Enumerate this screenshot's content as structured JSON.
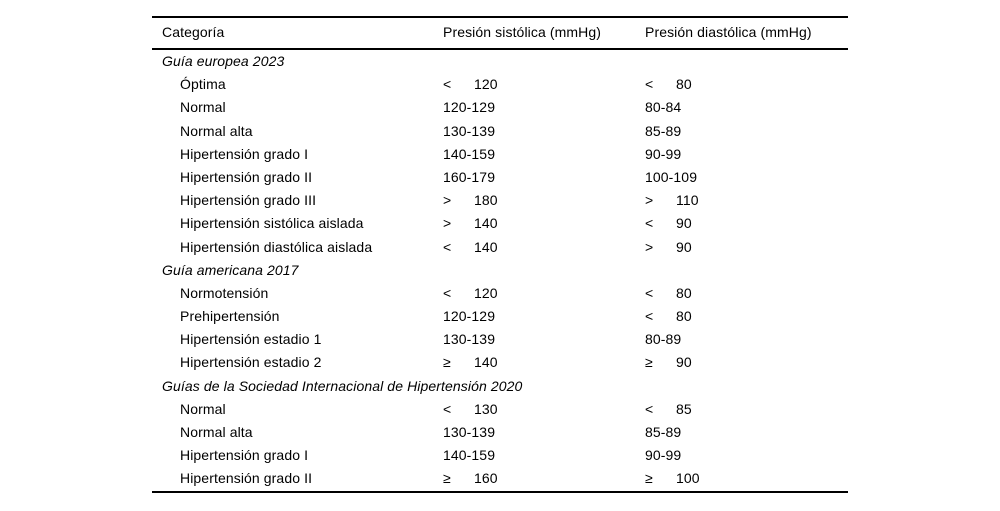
{
  "table": {
    "headers": {
      "category": "Categoría",
      "systolic": "Presión sistólica (mmHg)",
      "diastolic": "Presión diastólica (mmHg)"
    },
    "rows": [
      {
        "type": "section",
        "title": "Guía europea 2023"
      },
      {
        "type": "data",
        "category": "Óptima",
        "sys_op": "<",
        "sys_val": "120",
        "dia_op": "<",
        "dia_val": "80"
      },
      {
        "type": "data",
        "category": "Normal",
        "sys_op": "",
        "sys_val": "120-129",
        "dia_op": "",
        "dia_val": "80-84"
      },
      {
        "type": "data",
        "category": "Normal alta",
        "sys_op": "",
        "sys_val": "130-139",
        "dia_op": "",
        "dia_val": "85-89"
      },
      {
        "type": "data",
        "category": "Hipertensión grado I",
        "sys_op": "",
        "sys_val": "140-159",
        "dia_op": "",
        "dia_val": "90-99"
      },
      {
        "type": "data",
        "category": "Hipertensión grado II",
        "sys_op": "",
        "sys_val": "160-179",
        "dia_op": "",
        "dia_val": "100-109"
      },
      {
        "type": "data",
        "category": "Hipertensión grado III",
        "sys_op": ">",
        "sys_val": "180",
        "dia_op": ">",
        "dia_val": "110"
      },
      {
        "type": "data",
        "category": "Hipertensión sistólica aislada",
        "sys_op": ">",
        "sys_val": "140",
        "dia_op": "<",
        "dia_val": "90"
      },
      {
        "type": "data",
        "category": "Hipertensión diastólica aislada",
        "sys_op": "<",
        "sys_val": "140",
        "dia_op": ">",
        "dia_val": "90"
      },
      {
        "type": "section",
        "title": "Guía americana 2017"
      },
      {
        "type": "data",
        "category": "Normotensión",
        "sys_op": "<",
        "sys_val": "120",
        "dia_op": "<",
        "dia_val": "80"
      },
      {
        "type": "data",
        "category": "Prehipertensión",
        "sys_op": "",
        "sys_val": "120-129",
        "dia_op": "<",
        "dia_val": "80"
      },
      {
        "type": "data",
        "category": "Hipertensión estadio 1",
        "sys_op": "",
        "sys_val": "130-139",
        "dia_op": "",
        "dia_val": "80-89"
      },
      {
        "type": "data",
        "category": "Hipertensión estadio 2",
        "sys_op": "≥",
        "sys_val": "140",
        "dia_op": "≥",
        "dia_val": "90"
      },
      {
        "type": "section",
        "title": "Guías de la Sociedad Internacional de Hipertensión 2020"
      },
      {
        "type": "data",
        "category": "Normal",
        "sys_op": "<",
        "sys_val": "130",
        "dia_op": "<",
        "dia_val": "85"
      },
      {
        "type": "data",
        "category": "Normal alta",
        "sys_op": "",
        "sys_val": "130-139",
        "dia_op": "",
        "dia_val": "85-89"
      },
      {
        "type": "data",
        "category": "Hipertensión grado I",
        "sys_op": "",
        "sys_val": "140-159",
        "dia_op": "",
        "dia_val": "90-99"
      },
      {
        "type": "data",
        "category": "Hipertensión grado II",
        "sys_op": "≥",
        "sys_val": "160",
        "dia_op": "≥",
        "dia_val": "100"
      }
    ],
    "colors": {
      "text": "#000000",
      "rule": "#000000",
      "background": "#ffffff"
    }
  }
}
